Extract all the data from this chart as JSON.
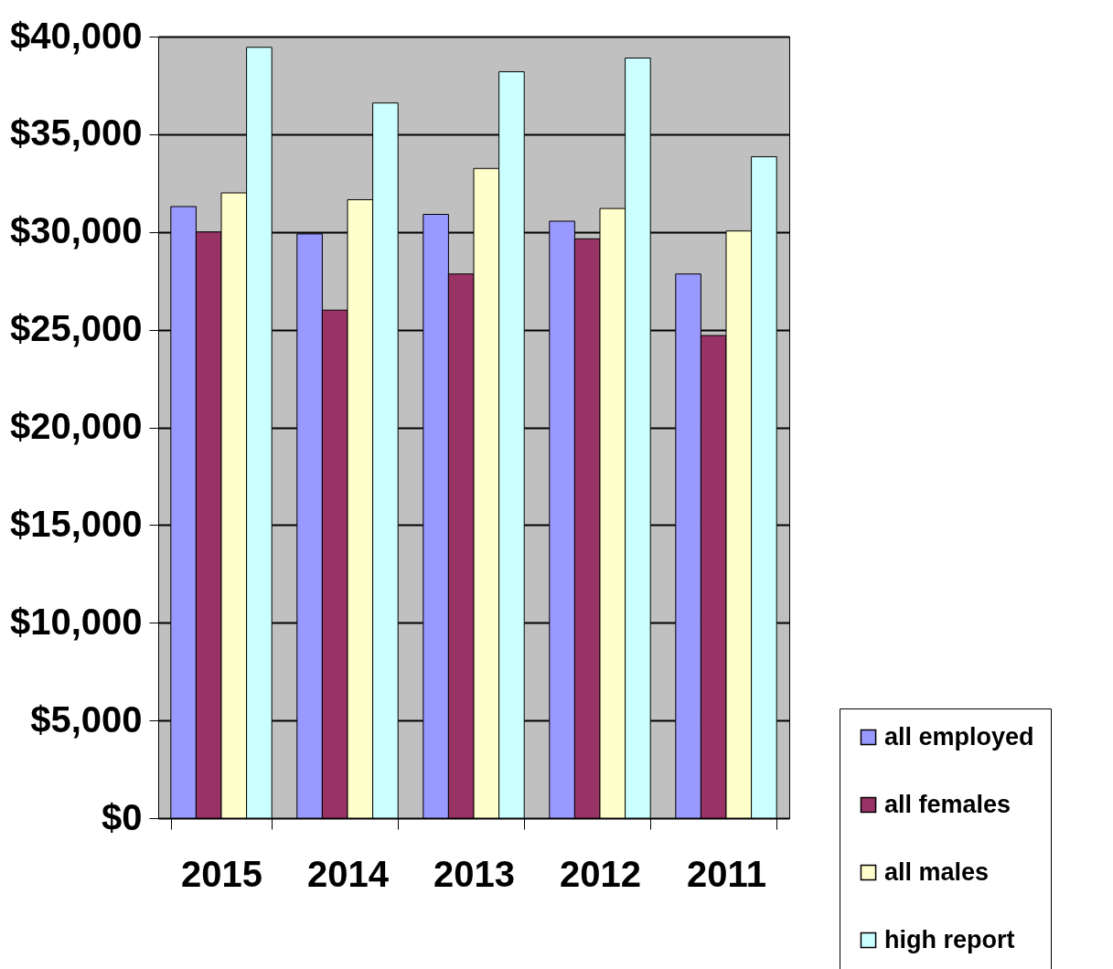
{
  "chart_data": {
    "type": "bar",
    "categories": [
      "2015",
      "2014",
      "2013",
      "2012",
      "2011"
    ],
    "series": [
      {
        "name": "all employed",
        "color": "#9999ff",
        "values": [
          31300,
          29900,
          30900,
          30550,
          27850
        ]
      },
      {
        "name": "all females",
        "color": "#993366",
        "values": [
          30000,
          26000,
          27850,
          29650,
          24700
        ]
      },
      {
        "name": "all males",
        "color": "#ffffcc",
        "values": [
          32000,
          31650,
          33250,
          31200,
          30050
        ]
      },
      {
        "name": "high report",
        "color": "#ccffff",
        "values": [
          39450,
          36600,
          38200,
          38900,
          33850
        ]
      }
    ],
    "ylim": [
      0,
      40000
    ],
    "yticks": [
      {
        "value": 0,
        "label": "$0"
      },
      {
        "value": 5000,
        "label": "$5,000"
      },
      {
        "value": 10000,
        "label": "$10,000"
      },
      {
        "value": 15000,
        "label": "$15,000"
      },
      {
        "value": 20000,
        "label": "$20,000"
      },
      {
        "value": 25000,
        "label": "$25,000"
      },
      {
        "value": 30000,
        "label": "$30,000"
      },
      {
        "value": 35000,
        "label": "$35,000"
      },
      {
        "value": 40000,
        "label": "$40,000"
      }
    ],
    "grid": "y",
    "legend": "bottom right"
  }
}
